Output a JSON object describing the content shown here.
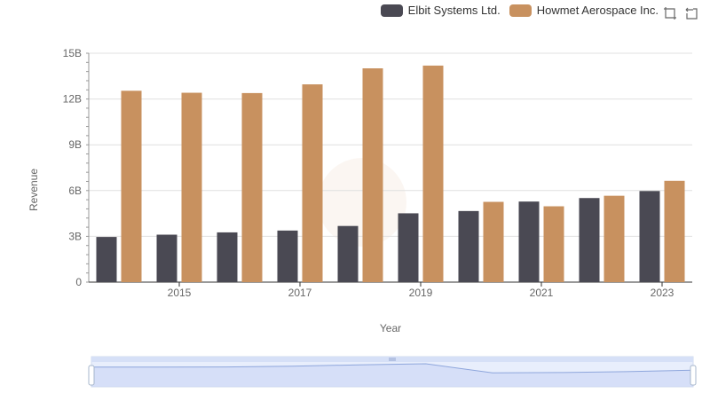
{
  "chart_data": {
    "type": "bar",
    "xlabel": "Year",
    "ylabel": "Revenue",
    "ylim": [
      0,
      15000000000
    ],
    "yticks": [
      "0",
      "3B",
      "6B",
      "9B",
      "12B",
      "15B"
    ],
    "ytick_values": [
      0,
      3000000000,
      6000000000,
      9000000000,
      12000000000,
      15000000000
    ],
    "categories": [
      "2014",
      "2015",
      "2016",
      "2017",
      "2018",
      "2019",
      "2020",
      "2021",
      "2022",
      "2023"
    ],
    "xtick_labels_shown": [
      "2015",
      "2017",
      "2019",
      "2021",
      "2023"
    ],
    "grid": true,
    "legend_position": "top-right",
    "series": [
      {
        "name": "Elbit Systems Ltd.",
        "color": "#4a4953",
        "values": [
          2960000000,
          3110000000,
          3260000000,
          3380000000,
          3680000000,
          4510000000,
          4660000000,
          5280000000,
          5510000000,
          5970000000
        ]
      },
      {
        "name": "Howmet Aerospace Inc.",
        "color": "#c8915f",
        "values": [
          12540000000,
          12410000000,
          12390000000,
          12960000000,
          14010000000,
          14190000000,
          5260000000,
          4970000000,
          5660000000,
          6640000000
        ]
      }
    ]
  },
  "toolbox": {
    "zoom_icon": "zoom-icon",
    "restore_icon": "restore-icon"
  }
}
